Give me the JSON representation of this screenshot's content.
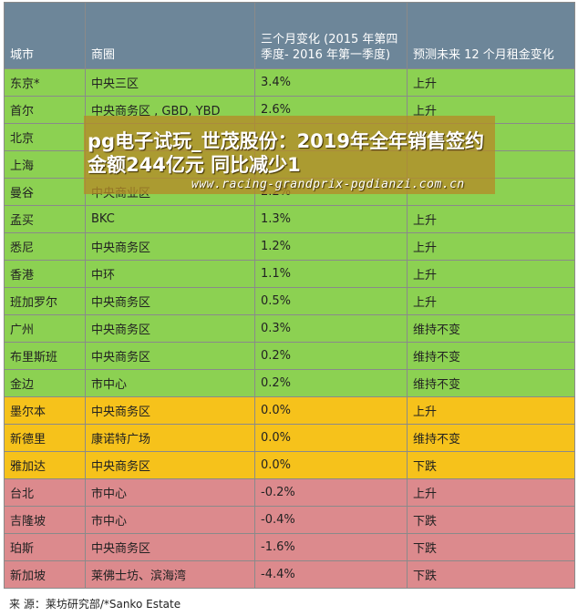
{
  "header": {
    "city": "城市",
    "district": "商圈",
    "change": "三个月变化 (2015 年第四季度- 2016 年第一季度)",
    "forecast": "预测未来 12 个月租金变化"
  },
  "rows": [
    {
      "city": "东京*",
      "district": "中央三区",
      "change": "3.4%",
      "forecast": "上升",
      "color": "g"
    },
    {
      "city": "首尔",
      "district": "中央商务区 , GBD, YBD",
      "change": "2.6%",
      "forecast": "上升",
      "color": "g"
    },
    {
      "city": "北京",
      "district": "",
      "change": "",
      "forecast": "",
      "color": "g"
    },
    {
      "city": "上海",
      "district": "",
      "change": "",
      "forecast": "",
      "color": "g"
    },
    {
      "city": "曼谷",
      "district": "中央商业区",
      "change": "2.2%",
      "forecast": "",
      "color": "g"
    },
    {
      "city": "孟买",
      "district": "BKC",
      "change": "1.3%",
      "forecast": "上升",
      "color": "g"
    },
    {
      "city": "悉尼",
      "district": "中央商务区",
      "change": "1.2%",
      "forecast": "上升",
      "color": "g"
    },
    {
      "city": "香港",
      "district": "中环",
      "change": "1.1%",
      "forecast": "上升",
      "color": "g"
    },
    {
      "city": "班加罗尔",
      "district": "中央商务区",
      "change": "0.5%",
      "forecast": "上升",
      "color": "g"
    },
    {
      "city": "广州",
      "district": "中央商务区",
      "change": "0.3%",
      "forecast": "维持不变",
      "color": "g"
    },
    {
      "city": "布里斯班",
      "district": "中央商务区",
      "change": "0.2%",
      "forecast": "维持不变",
      "color": "g"
    },
    {
      "city": "金边",
      "district": "市中心",
      "change": "0.2%",
      "forecast": "维持不变",
      "color": "g"
    },
    {
      "city": "墨尔本",
      "district": "中央商务区",
      "change": "0.0%",
      "forecast": "上升",
      "color": "o"
    },
    {
      "city": "新德里",
      "district": "康诺特广场",
      "change": "0.0%",
      "forecast": "维持不变",
      "color": "o"
    },
    {
      "city": "雅加达",
      "district": "中央商务区",
      "change": "0.0%",
      "forecast": "下跌",
      "color": "o"
    },
    {
      "city": "台北",
      "district": "市中心",
      "change": "-0.2%",
      "forecast": "上升",
      "color": "p"
    },
    {
      "city": "吉隆坡",
      "district": "市中心",
      "change": "-0.4%",
      "forecast": "下跌",
      "color": "p"
    },
    {
      "city": "珀斯",
      "district": "中央商务区",
      "change": "-1.6%",
      "forecast": "下跌",
      "color": "p"
    },
    {
      "city": "新加坡",
      "district": "莱佛士坊、滨海湾",
      "change": "-4.4%",
      "forecast": "下跌",
      "color": "p"
    }
  ],
  "source": "来 源：莱坊研究部/*Sanko Estate",
  "overlay": {
    "title": "pg电子试玩_世茂股份：2019年全年销售签约金额244亿元 同比减少1",
    "url": "www.racing-grandprix-pgdianzi.com.cn"
  },
  "colors": {
    "green": "#8cd152",
    "orange": "#f6c21b",
    "pink": "#dc8a8d",
    "header": "#6d8699"
  }
}
